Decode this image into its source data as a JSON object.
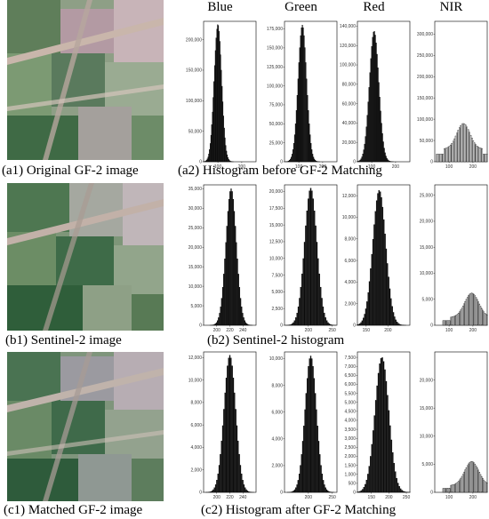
{
  "colors": {
    "ink": "#000000",
    "field_dark": "#2f5e3a",
    "field_light": "#9fb08c",
    "field_pink": "#b89aa6",
    "road": "#c9b6ab"
  },
  "columns": [
    "Blue",
    "Green",
    "Red",
    "NIR"
  ],
  "captions": {
    "a1": "(a1) Original GF-2 image",
    "a2": "(a2) Histogram before GF-2 Matching",
    "b1": "(b1) Sentinel-2 image",
    "b2": "(b2) Sentinel-2 histogram",
    "c1": "(c1) Matched GF-2 image",
    "c2": "(c2) Histogram after GF-2 Matching"
  },
  "chart_data": [
    {
      "id": "a2-blue",
      "row": "a",
      "band": "Blue",
      "type": "bar",
      "xlim": [
        40,
        260
      ],
      "ylim": [
        0,
        230000
      ],
      "xticks": [
        100,
        200
      ],
      "yticks": [
        0,
        50000,
        100000,
        150000,
        200000
      ],
      "ytick_labels": [
        "0",
        "50,000",
        "100,000",
        "150,000",
        "200,000"
      ],
      "peak_x": 100,
      "peak_y": 225000,
      "spread": 16,
      "floor": 0
    },
    {
      "id": "a2-green",
      "row": "a",
      "band": "Green",
      "type": "bar",
      "xlim": [
        40,
        260
      ],
      "ylim": [
        0,
        185000
      ],
      "xticks": [
        100,
        200
      ],
      "yticks": [
        0,
        25000,
        50000,
        75000,
        100000,
        125000,
        150000,
        175000
      ],
      "ytick_labels": [
        "0",
        "25,000",
        "50,000",
        "75,000",
        "100,000",
        "125,000",
        "150,000",
        "175,000"
      ],
      "peak_x": 115,
      "peak_y": 180000,
      "spread": 18,
      "floor": 0
    },
    {
      "id": "a2-red",
      "row": "a",
      "band": "Red",
      "type": "bar",
      "xlim": [
        40,
        260
      ],
      "ylim": [
        0,
        145000
      ],
      "xticks": [
        100,
        200
      ],
      "yticks": [
        0,
        20000,
        40000,
        60000,
        80000,
        100000,
        120000,
        140000
      ],
      "ytick_labels": [
        "0",
        "20,000",
        "40,000",
        "60,000",
        "80,000",
        "100,000",
        "120,000",
        "140,000"
      ],
      "peak_x": 110,
      "peak_y": 135000,
      "spread": 20,
      "floor": 0
    },
    {
      "id": "a2-nir",
      "row": "a",
      "band": "NIR",
      "type": "bar",
      "xlim": [
        40,
        260
      ],
      "ylim": [
        0,
        330000
      ],
      "xticks": [
        100,
        200
      ],
      "yticks": [
        0,
        50000,
        100000,
        150000,
        200000,
        250000,
        300000
      ],
      "ytick_labels": [
        "0",
        "50,000",
        "100,000",
        "150,000",
        "200,000",
        "250,000",
        "300,000"
      ],
      "peak_x": 160,
      "peak_y": 90000,
      "spread": 28,
      "floor": 30000
    },
    {
      "id": "b2-blue",
      "row": "b",
      "band": "Blue",
      "type": "bar",
      "xlim": [
        180,
        260
      ],
      "ylim": [
        0,
        36000
      ],
      "xticks": [
        200,
        220,
        240
      ],
      "yticks": [
        0,
        5000,
        10000,
        15000,
        20000,
        25000,
        30000,
        35000
      ],
      "ytick_labels": [
        "0",
        "5,000",
        "10,000",
        "15,000",
        "20,000",
        "25,000",
        "30,000",
        "35,000"
      ],
      "peak_x": 222,
      "peak_y": 35000,
      "spread": 8,
      "floor": 0
    },
    {
      "id": "b2-green",
      "row": "b",
      "band": "Green",
      "type": "bar",
      "xlim": [
        150,
        260
      ],
      "ylim": [
        0,
        21000
      ],
      "xticks": [
        200,
        250
      ],
      "yticks": [
        0,
        2500,
        5000,
        7500,
        10000,
        12500,
        15000,
        17500,
        20000
      ],
      "ytick_labels": [
        "0",
        "2,500",
        "5,000",
        "7,500",
        "10,000",
        "12,500",
        "15,000",
        "17,500",
        "20,000"
      ],
      "peak_x": 205,
      "peak_y": 20500,
      "spread": 13,
      "floor": 0
    },
    {
      "id": "b2-red",
      "row": "b",
      "band": "Red",
      "type": "bar",
      "xlim": [
        130,
        250
      ],
      "ylim": [
        0,
        13000
      ],
      "xticks": [
        150,
        200
      ],
      "yticks": [
        0,
        2000,
        4000,
        6000,
        8000,
        10000,
        12000
      ],
      "ytick_labels": [
        "0",
        "2,000",
        "4,000",
        "6,000",
        "8,000",
        "10,000",
        "12,000"
      ],
      "peak_x": 180,
      "peak_y": 12500,
      "spread": 15,
      "floor": 0
    },
    {
      "id": "b2-nir",
      "row": "b",
      "band": "NIR",
      "type": "bar",
      "xlim": [
        40,
        260
      ],
      "ylim": [
        0,
        27000
      ],
      "xticks": [
        100,
        200
      ],
      "yticks": [
        0,
        5000,
        10000,
        15000,
        20000,
        25000
      ],
      "ytick_labels": [
        "0",
        "5,000",
        "10,000",
        "15,000",
        "20,000",
        "25,000"
      ],
      "peak_x": 195,
      "peak_y": 6200,
      "spread": 30,
      "floor": 1500
    },
    {
      "id": "c2-blue",
      "row": "c",
      "band": "Blue",
      "type": "bar",
      "xlim": [
        180,
        260
      ],
      "ylim": [
        0,
        12500
      ],
      "xticks": [
        200,
        220,
        240
      ],
      "yticks": [
        0,
        2000,
        4000,
        6000,
        8000,
        10000,
        12000
      ],
      "ytick_labels": [
        "0",
        "2,000",
        "4,000",
        "6,000",
        "8,000",
        "10,000",
        "12,000"
      ],
      "peak_x": 220,
      "peak_y": 12200,
      "spread": 9,
      "floor": 0
    },
    {
      "id": "c2-green",
      "row": "c",
      "band": "Green",
      "type": "bar",
      "xlim": [
        150,
        260
      ],
      "ylim": [
        0,
        10500
      ],
      "xticks": [
        200,
        250
      ],
      "yticks": [
        0,
        2000,
        4000,
        6000,
        8000,
        10000
      ],
      "ytick_labels": [
        "0",
        "2,000",
        "4,000",
        "6,000",
        "8,000",
        "10,000"
      ],
      "peak_x": 205,
      "peak_y": 10200,
      "spread": 12,
      "floor": 0
    },
    {
      "id": "c2-red",
      "row": "c",
      "band": "Red",
      "type": "bar",
      "xlim": [
        110,
        260
      ],
      "ylim": [
        0,
        7800
      ],
      "xticks": [
        150,
        200,
        250
      ],
      "yticks": [
        0,
        500,
        1000,
        1500,
        2000,
        2500,
        3000,
        3500,
        4000,
        4500,
        5000,
        5500,
        6000,
        6500,
        7000,
        7500
      ],
      "ytick_labels": [
        "0",
        "500",
        "1,000",
        "1,500",
        "2,000",
        "2,500",
        "3,000",
        "3,500",
        "4,000",
        "4,500",
        "5,000",
        "5,500",
        "6,000",
        "6,500",
        "7,000",
        "7,500"
      ],
      "peak_x": 180,
      "peak_y": 7500,
      "spread": 20,
      "floor": 0
    },
    {
      "id": "c2-nir",
      "row": "c",
      "band": "NIR",
      "type": "bar",
      "xlim": [
        40,
        260
      ],
      "ylim": [
        0,
        25000
      ],
      "xticks": [
        100,
        200
      ],
      "yticks": [
        0,
        5000,
        10000,
        15000,
        20000
      ],
      "ytick_labels": [
        "0",
        "5,000",
        "10,000",
        "15,000",
        "20,000"
      ],
      "peak_x": 195,
      "peak_y": 5500,
      "spread": 30,
      "floor": 1200
    }
  ]
}
